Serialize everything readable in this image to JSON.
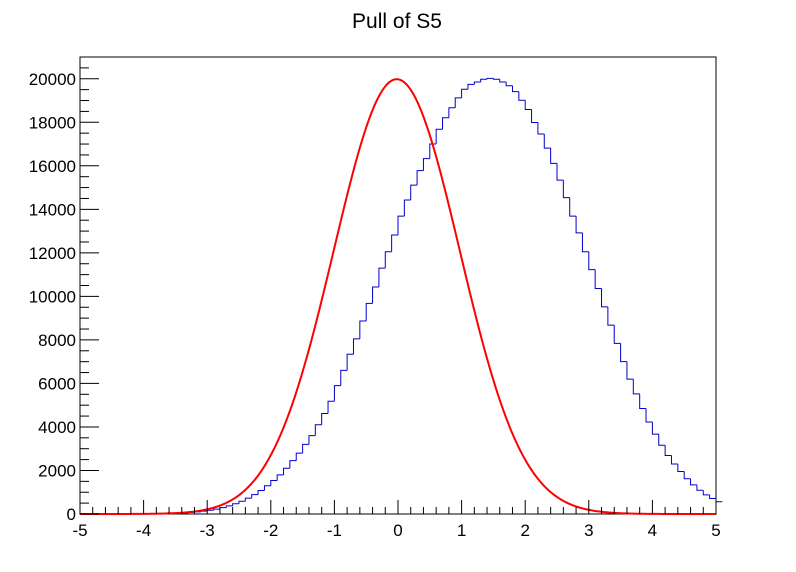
{
  "chart_data": {
    "type": "bar",
    "title": "Pull of S5",
    "xlabel": "",
    "ylabel": "",
    "xlim": [
      -5,
      5
    ],
    "ylim": [
      0,
      21000
    ],
    "x_ticks": [
      -5,
      -4,
      -3,
      -2,
      -1,
      0,
      1,
      2,
      3,
      4,
      5
    ],
    "x_tick_labels": [
      "-5",
      "-4",
      "-3",
      "-2",
      "-1",
      "0",
      "1",
      "2",
      "3",
      "4",
      "5"
    ],
    "y_ticks": [
      0,
      2000,
      4000,
      6000,
      8000,
      10000,
      12000,
      14000,
      16000,
      18000,
      20000
    ],
    "y_tick_labels": [
      "0",
      "2000",
      "4000",
      "6000",
      "8000",
      "10000",
      "12000",
      "14000",
      "16000",
      "18000",
      "20000"
    ],
    "grid": false,
    "histogram": {
      "bin_low": -5,
      "bin_width": 0.1,
      "counts": [
        0,
        0,
        0,
        0,
        0,
        1,
        1,
        2,
        3,
        4,
        6,
        9,
        13,
        19,
        27,
        38,
        53,
        72,
        97,
        130,
        172,
        225,
        291,
        371,
        469,
        587,
        727,
        891,
        1080,
        1297,
        1540,
        1800,
        2100,
        2450,
        2800,
        3200,
        3600,
        4100,
        4620,
        5180,
        5900,
        6600,
        7340,
        8050,
        8870,
        9680,
        10430,
        11300,
        12050,
        12820,
        13690,
        14430,
        15110,
        15780,
        16330,
        17000,
        17680,
        18210,
        18670,
        19120,
        19520,
        19740,
        19850,
        19980,
        20020,
        19980,
        19850,
        19680,
        19410,
        19010,
        18590,
        17990,
        17460,
        16810,
        16110,
        15340,
        14540,
        13690,
        12920,
        12050,
        11230,
        10360,
        9520,
        8680,
        7840,
        7000,
        6200,
        5520,
        4850,
        4230,
        3670,
        3160,
        2690,
        2300,
        1950,
        1620,
        1340,
        1090,
        880,
        710,
        560
      ],
      "color": "#0000cc"
    },
    "fit": {
      "function": "gaussian",
      "constant": 19980,
      "mean": -0.02,
      "sigma": 0.99,
      "color": "#ff0000"
    }
  }
}
